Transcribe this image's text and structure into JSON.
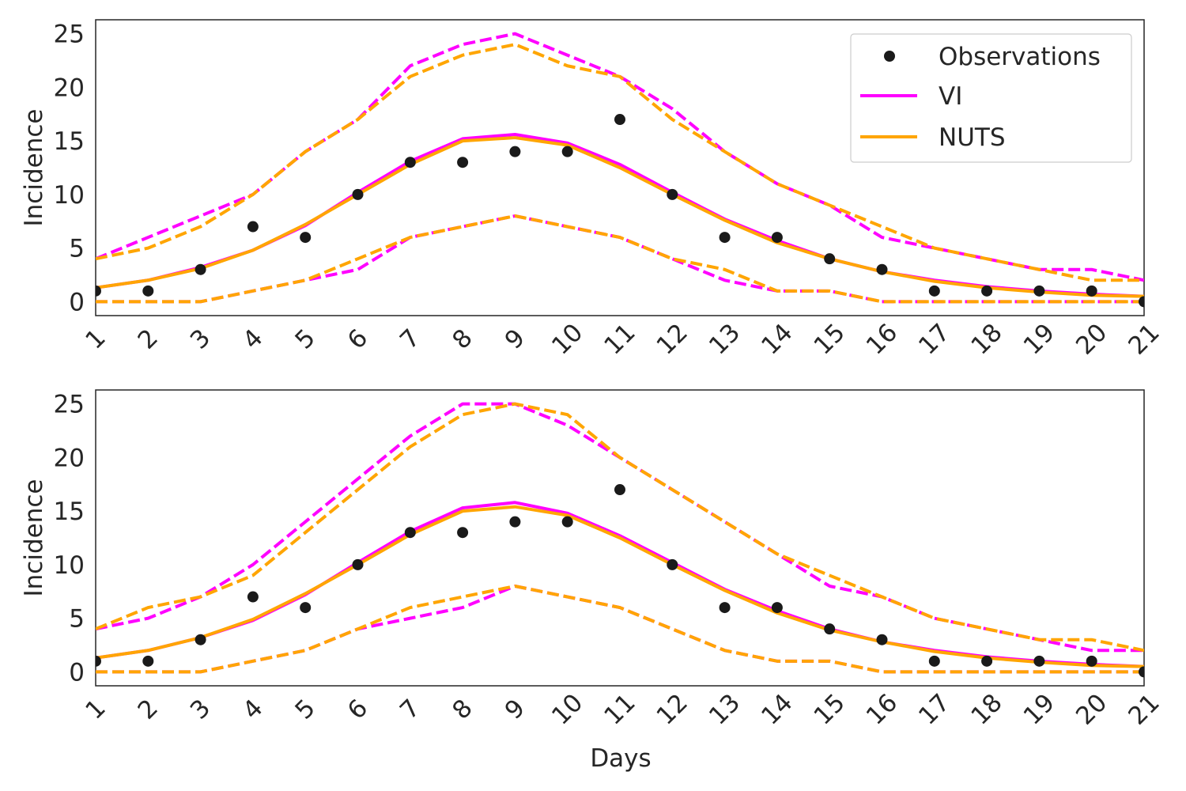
{
  "chart_data": [
    {
      "type": "line",
      "title": "",
      "xlabel": "",
      "ylabel": "Incidence",
      "x": [
        1,
        2,
        3,
        4,
        5,
        6,
        7,
        8,
        9,
        10,
        11,
        12,
        13,
        14,
        15,
        16,
        17,
        18,
        19,
        20,
        21
      ],
      "xlim": [
        1,
        21
      ],
      "ylim": [
        -1.3,
        26.3
      ],
      "yticks": [
        0,
        5,
        10,
        15,
        20,
        25
      ],
      "grid": false,
      "legend": {
        "position": "top-right",
        "entries": [
          "Observations",
          "VI",
          "NUTS"
        ]
      },
      "observations": [
        1,
        1,
        3,
        7,
        6,
        10,
        13,
        13,
        14,
        14,
        17,
        10,
        6,
        6,
        4,
        3,
        1,
        1,
        1,
        1,
        0
      ],
      "series": [
        {
          "name": "VI",
          "color": "#ff00ff",
          "style": "solid",
          "values": [
            1.3,
            2.0,
            3.2,
            4.8,
            7.1,
            10.2,
            13.1,
            15.2,
            15.6,
            14.8,
            12.8,
            10.2,
            7.7,
            5.7,
            4.0,
            2.8,
            2.0,
            1.4,
            1.0,
            0.7,
            0.5
          ]
        },
        {
          "name": "NUTS",
          "color": "#ffa500",
          "style": "solid",
          "values": [
            1.3,
            2.0,
            3.1,
            4.8,
            7.2,
            10.0,
            12.8,
            15.0,
            15.3,
            14.6,
            12.5,
            10.0,
            7.6,
            5.5,
            4.0,
            2.8,
            1.9,
            1.3,
            0.9,
            0.6,
            0.5
          ]
        },
        {
          "color": "#ff00ff",
          "style": "dashed",
          "values": [
            4,
            6,
            8,
            10,
            14,
            17,
            22,
            24,
            25,
            23,
            21,
            18,
            14,
            11,
            9,
            6,
            5,
            4,
            3,
            3,
            2
          ]
        },
        {
          "color": "#ffa500",
          "style": "dashed",
          "values": [
            4,
            5,
            7,
            10,
            14,
            17,
            21,
            23,
            24,
            22,
            21,
            17,
            14,
            11,
            9,
            7,
            5,
            4,
            3,
            2,
            2
          ]
        },
        {
          "color": "#ff00ff",
          "style": "dashed",
          "values": [
            0,
            0,
            0,
            1,
            2,
            3,
            6,
            7,
            8,
            7,
            6,
            4,
            2,
            1,
            1,
            0,
            0,
            0,
            0,
            0,
            0
          ]
        },
        {
          "color": "#ffa500",
          "style": "dashed",
          "values": [
            0,
            0,
            0,
            1,
            2,
            4,
            6,
            7,
            8,
            7,
            6,
            4,
            3,
            1,
            1,
            0,
            0,
            0,
            0,
            0,
            0
          ]
        }
      ]
    },
    {
      "type": "line",
      "title": "",
      "xlabel": "Days",
      "ylabel": "Incidence",
      "x": [
        1,
        2,
        3,
        4,
        5,
        6,
        7,
        8,
        9,
        10,
        11,
        12,
        13,
        14,
        15,
        16,
        17,
        18,
        19,
        20,
        21
      ],
      "xlim": [
        1,
        21
      ],
      "ylim": [
        -1.3,
        26.3
      ],
      "yticks": [
        0,
        5,
        10,
        15,
        20,
        25
      ],
      "grid": false,
      "observations": [
        1,
        1,
        3,
        7,
        6,
        10,
        13,
        13,
        14,
        14,
        17,
        10,
        6,
        6,
        4,
        3,
        1,
        1,
        1,
        1,
        0
      ],
      "series": [
        {
          "color": "#ff00ff",
          "style": "solid",
          "values": [
            1.3,
            2.0,
            3.2,
            4.8,
            7.2,
            10.2,
            13.1,
            15.3,
            15.8,
            14.8,
            12.7,
            10.2,
            7.7,
            5.7,
            4.0,
            2.8,
            2.0,
            1.4,
            1.0,
            0.7,
            0.5
          ]
        },
        {
          "color": "#ffa500",
          "style": "solid",
          "values": [
            1.3,
            2.0,
            3.2,
            4.9,
            7.3,
            10.0,
            12.8,
            15.0,
            15.4,
            14.6,
            12.5,
            10.0,
            7.6,
            5.5,
            3.9,
            2.8,
            1.9,
            1.3,
            0.9,
            0.6,
            0.5
          ]
        },
        {
          "color": "#ff00ff",
          "style": "dashed",
          "values": [
            4,
            5,
            7,
            10,
            14,
            18,
            22,
            25,
            25,
            23,
            20,
            17,
            14,
            11,
            8,
            7,
            5,
            4,
            3,
            2,
            2
          ]
        },
        {
          "color": "#ffa500",
          "style": "dashed",
          "values": [
            4,
            6,
            7,
            9,
            13,
            17,
            21,
            24,
            25,
            24,
            20,
            17,
            14,
            11,
            9,
            7,
            5,
            4,
            3,
            3,
            2
          ]
        },
        {
          "color": "#ff00ff",
          "style": "dashed",
          "values": [
            0,
            0,
            0,
            1,
            2,
            4,
            5,
            6,
            8,
            7,
            6,
            4,
            2,
            1,
            1,
            0,
            0,
            0,
            0,
            0,
            0
          ]
        },
        {
          "color": "#ffa500",
          "style": "dashed",
          "values": [
            0,
            0,
            0,
            1,
            2,
            4,
            6,
            7,
            8,
            7,
            6,
            4,
            2,
            1,
            1,
            0,
            0,
            0,
            0,
            0,
            0
          ]
        }
      ]
    }
  ],
  "legend_labels": {
    "observations": "Observations",
    "vi": "VI",
    "nuts": "NUTS"
  },
  "colors": {
    "vi": "#ff00ff",
    "nuts": "#ffa500",
    "observations": "#1a1a1a",
    "axes": "#262626"
  },
  "shared_xlabel": "Days"
}
